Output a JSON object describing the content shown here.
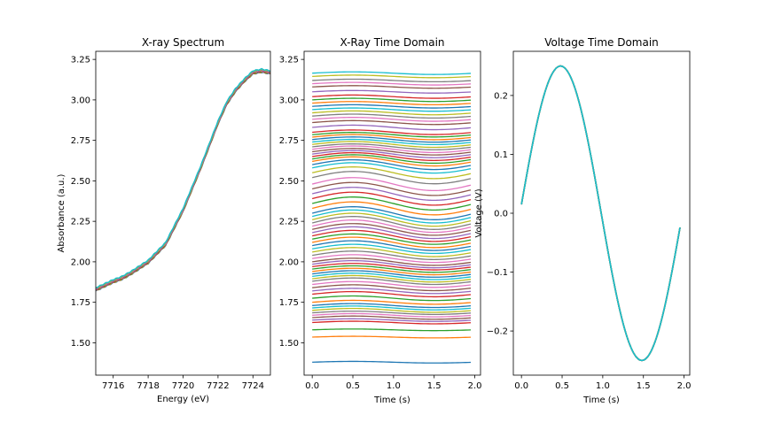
{
  "chart_data": [
    {
      "type": "line",
      "title": "X-ray Spectrum",
      "xlabel": "Energy (eV)",
      "ylabel": "Absorbance (a.u.)",
      "xlim": [
        7715,
        7725
      ],
      "ylim": [
        1.3,
        3.3
      ],
      "xticks": [
        7716,
        7718,
        7720,
        7722,
        7724
      ],
      "yticks": [
        1.5,
        1.75,
        2.0,
        2.25,
        2.5,
        2.75,
        3.0,
        3.25
      ],
      "xtick_labels": [
        "7716",
        "7718",
        "7720",
        "7722",
        "7724"
      ],
      "ytick_labels": [
        "1.50",
        "1.75",
        "2.00",
        "2.25",
        "2.50",
        "2.75",
        "3.00",
        "3.25"
      ],
      "series_count": 10,
      "series_spread": 0.02,
      "x": [
        7715.0,
        7716.0,
        7716.5,
        7717.0,
        7718.0,
        7719.0,
        7720.0,
        7721.0,
        7722.0,
        7722.5,
        7723.0,
        7723.5,
        7724.0,
        7724.5,
        7725.0
      ],
      "y": [
        1.83,
        1.88,
        1.9,
        1.93,
        2.0,
        2.11,
        2.32,
        2.58,
        2.86,
        2.98,
        3.06,
        3.12,
        3.17,
        3.18,
        3.17
      ]
    },
    {
      "type": "line",
      "title": "X-Ray Time Domain",
      "xlabel": "Time (s)",
      "ylabel": "",
      "xlim": [
        -0.1,
        2.07
      ],
      "ylim": [
        1.3,
        3.3
      ],
      "xticks": [
        0.0,
        0.5,
        1.0,
        1.5,
        2.0
      ],
      "yticks": [
        1.5,
        1.75,
        2.0,
        2.25,
        2.5,
        2.75,
        3.0,
        3.25
      ],
      "xtick_labels": [
        "0.0",
        "0.5",
        "1.0",
        "1.5",
        "2.0"
      ],
      "ytick_labels": [
        "1.50",
        "1.75",
        "2.00",
        "2.25",
        "2.50",
        "2.75",
        "3.00",
        "3.25"
      ],
      "time_range": [
        0.0,
        1.95
      ],
      "offsets": [
        1.38,
        1.535,
        1.58,
        1.625,
        1.64,
        1.655,
        1.67,
        1.685,
        1.7,
        1.715,
        1.73,
        1.75,
        1.775,
        1.8,
        1.82,
        1.84,
        1.86,
        1.88,
        1.895,
        1.91,
        1.925,
        1.94,
        1.955,
        1.97,
        1.985,
        2.0,
        2.02,
        2.04,
        2.06,
        2.08,
        2.1,
        2.12,
        2.14,
        2.16,
        2.18,
        2.2,
        2.22,
        2.24,
        2.26,
        2.28,
        2.3,
        2.33,
        2.36,
        2.39,
        2.42,
        2.45,
        2.48,
        2.52,
        2.55,
        2.58,
        2.6,
        2.62,
        2.635,
        2.65,
        2.665,
        2.68,
        2.695,
        2.71,
        2.725,
        2.74,
        2.755,
        2.77,
        2.785,
        2.8,
        2.83,
        2.86,
        2.88,
        2.9,
        2.92,
        2.94,
        2.96,
        2.98,
        3.0,
        3.02,
        3.05,
        3.08,
        3.1,
        3.12,
        3.145,
        3.165
      ],
      "amplitudes": [
        0.005,
        0.005,
        0.005,
        0.008,
        0.008,
        0.01,
        0.01,
        0.01,
        0.012,
        0.012,
        0.012,
        0.012,
        0.014,
        0.016,
        0.016,
        0.018,
        0.018,
        0.02,
        0.02,
        0.02,
        0.02,
        0.02,
        0.02,
        0.02,
        0.022,
        0.022,
        0.024,
        0.026,
        0.028,
        0.028,
        0.03,
        0.032,
        0.032,
        0.034,
        0.036,
        0.036,
        0.038,
        0.04,
        0.04,
        0.04,
        0.04,
        0.04,
        0.04,
        0.04,
        0.04,
        0.04,
        0.04,
        0.038,
        0.036,
        0.032,
        0.03,
        0.028,
        0.026,
        0.024,
        0.022,
        0.02,
        0.02,
        0.018,
        0.018,
        0.016,
        0.016,
        0.016,
        0.014,
        0.014,
        0.014,
        0.012,
        0.012,
        0.012,
        0.012,
        0.01,
        0.01,
        0.01,
        0.01,
        0.01,
        0.008,
        0.008,
        0.008,
        0.008,
        0.008,
        0.008
      ]
    },
    {
      "type": "line",
      "title": "Voltage Time Domain",
      "xlabel": "Time (s)",
      "ylabel": "Voltage (V)",
      "xlim": [
        -0.1,
        2.07
      ],
      "ylim": [
        -0.275,
        0.275
      ],
      "xticks": [
        0.0,
        0.5,
        1.0,
        1.5,
        2.0
      ],
      "yticks": [
        -0.2,
        -0.1,
        0.0,
        0.1,
        0.2
      ],
      "xtick_labels": [
        "0.0",
        "0.5",
        "1.0",
        "1.5",
        "2.0"
      ],
      "ytick_labels": [
        "−0.2",
        "−0.1",
        "0.0",
        "0.1",
        "0.2"
      ],
      "time_range": [
        0.0,
        1.95
      ],
      "amplitude": 0.25,
      "frequency": 0.5,
      "series_count": 10
    }
  ],
  "colors": [
    "#1f77b4",
    "#ff7f0e",
    "#2ca02c",
    "#d62728",
    "#9467bd",
    "#8c564b",
    "#e377c2",
    "#7f7f7f",
    "#bcbd22",
    "#17becf"
  ]
}
